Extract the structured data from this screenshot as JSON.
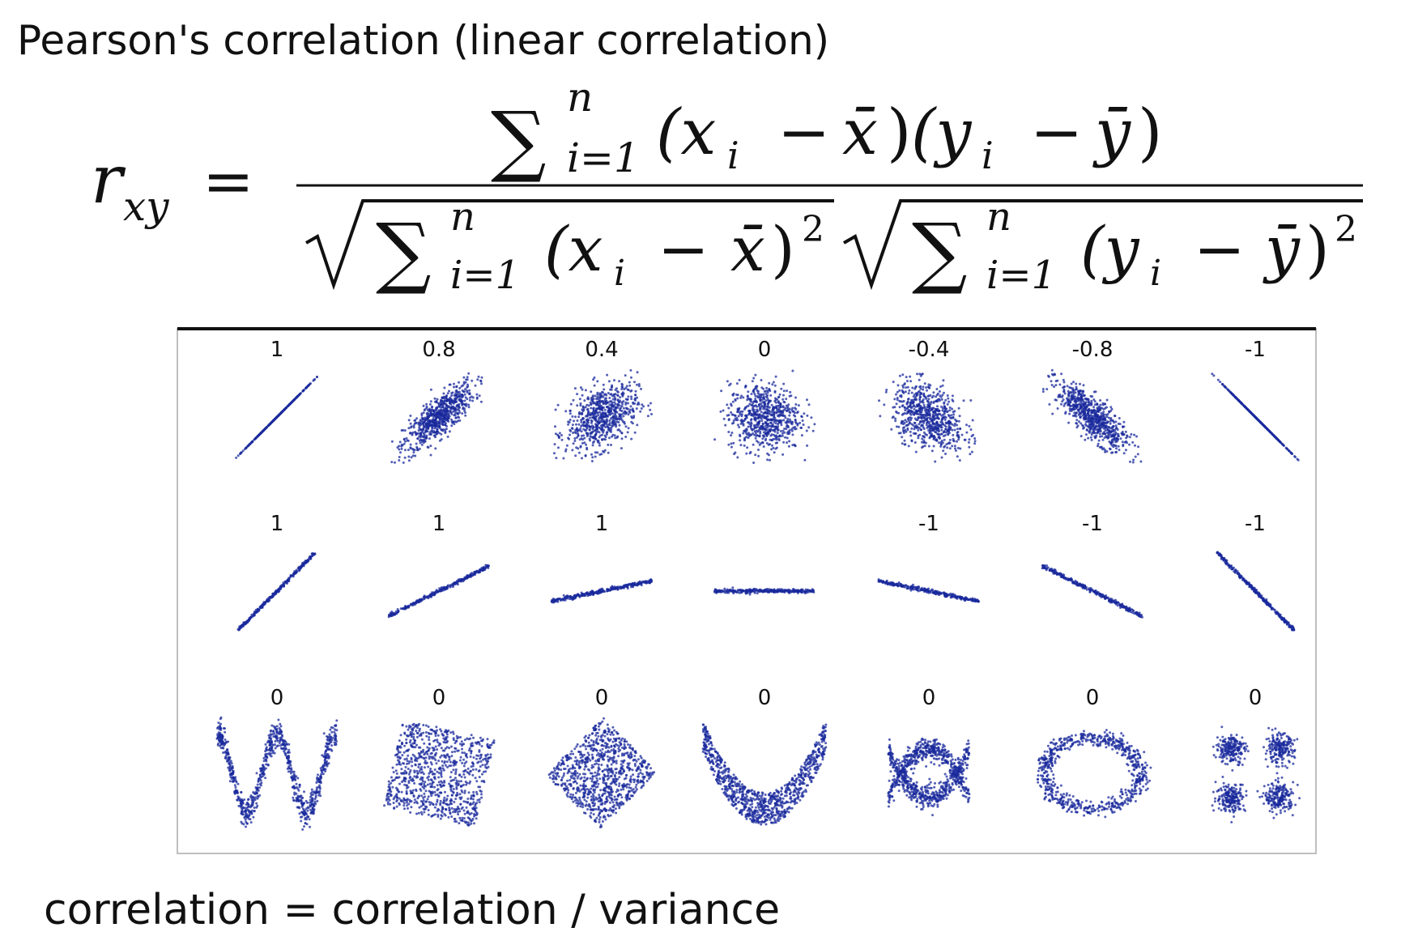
{
  "title": "Pearson's correlation (linear correlation)",
  "footer": "correlation = correlation / variance",
  "formula": {
    "lhs_r": "r",
    "lhs_sub": "xy",
    "equals": "=",
    "sum": "∑",
    "upper": "n",
    "lower": "i=1",
    "num_x_term": "(x",
    "num_y_term": "(y",
    "minus": "−",
    "sub_i": "i",
    "xbar": "x̄",
    "ybar": "ȳ",
    "close": ")",
    "sq": "2"
  },
  "chart_data": {
    "type": "scatter",
    "point_color": "#1a2a9c",
    "rows": [
      {
        "labels": [
          "1",
          "0.8",
          "0.4",
          "0",
          "-0.4",
          "-0.8",
          "-1"
        ],
        "correlations": [
          1,
          0.8,
          0.4,
          0,
          -0.4,
          -0.8,
          -1
        ]
      },
      {
        "labels": [
          "1",
          "1",
          "1",
          "",
          "-1",
          "-1",
          "-1"
        ],
        "slopes": [
          1,
          0.5,
          0.2,
          0,
          -0.2,
          -0.5,
          -1
        ]
      },
      {
        "labels": [
          "0",
          "0",
          "0",
          "0",
          "0",
          "0",
          "0"
        ],
        "shapes": [
          "w-wave",
          "rotated-square",
          "diamond",
          "parabola",
          "x-cross",
          "ring",
          "four-clusters"
        ]
      }
    ]
  }
}
